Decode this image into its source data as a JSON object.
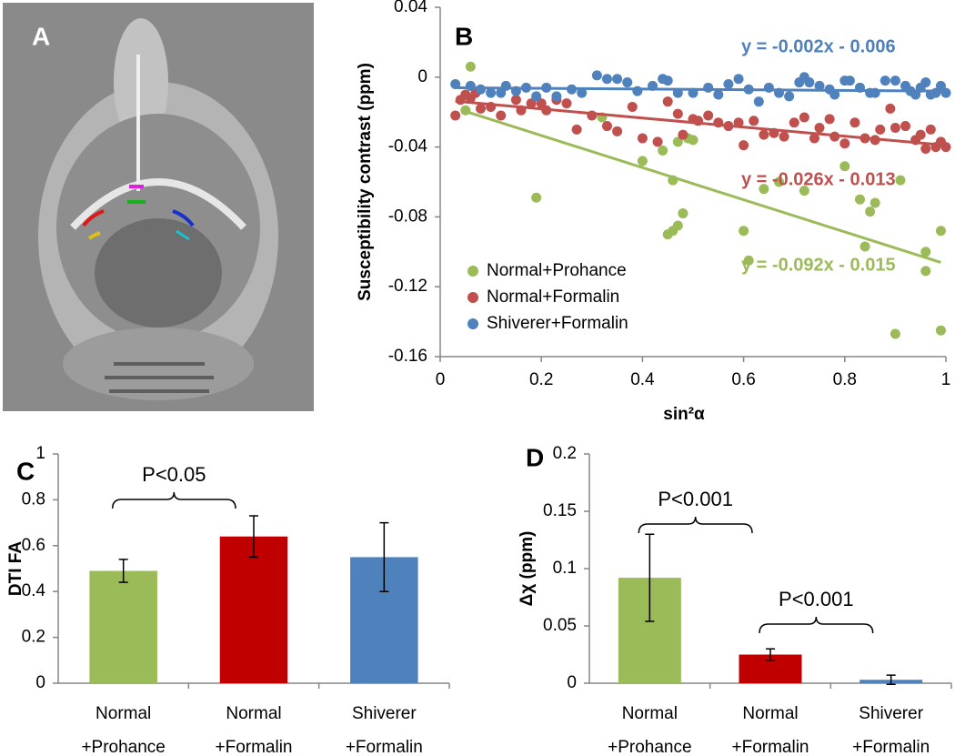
{
  "image_panel": {
    "label": "A"
  },
  "chart_data": [
    {
      "type": "scatter",
      "label": "B",
      "x_label": "sin²α",
      "y_label": "Susceptibility contrast  (ppm)",
      "xlim": [
        0,
        1
      ],
      "xticks": [
        0,
        0.2,
        0.4,
        0.6,
        0.8,
        1
      ],
      "ylim": [
        -0.16,
        0.04
      ],
      "yticks": [
        -0.16,
        -0.12,
        -0.08,
        -0.04,
        0,
        0.04
      ],
      "legend": "lower left",
      "series": [
        {
          "name": "Normal+Prohance",
          "color": "#9bbb59",
          "equation": "y = -0.092x - 0.015",
          "fit": {
            "slope": -0.092,
            "intercept": -0.015
          },
          "x": [
            0.06,
            0.05,
            0.19,
            0.32,
            0.4,
            0.45,
            0.46,
            0.47,
            0.48,
            0.47,
            0.49,
            0.46,
            0.44,
            0.5,
            0.6,
            0.61,
            0.64,
            0.67,
            0.72,
            0.8,
            0.83,
            0.84,
            0.85,
            0.86,
            0.9,
            0.91,
            0.96,
            0.96,
            0.99,
            0.99
          ],
          "values": [
            0.006,
            -0.019,
            -0.069,
            -0.023,
            -0.048,
            -0.09,
            -0.088,
            -0.085,
            -0.078,
            -0.037,
            -0.035,
            -0.059,
            -0.042,
            -0.036,
            -0.088,
            -0.105,
            -0.064,
            -0.06,
            -0.065,
            -0.051,
            -0.07,
            -0.097,
            -0.077,
            -0.072,
            -0.147,
            -0.059,
            -0.1,
            -0.111,
            -0.145,
            -0.088
          ]
        },
        {
          "name": "Normal+Formalin",
          "color": "#c0504d",
          "equation": "y = -0.026x - 0.013",
          "fit": {
            "slope": -0.026,
            "intercept": -0.013
          },
          "x": [
            0.03,
            0.04,
            0.05,
            0.06,
            0.07,
            0.08,
            0.1,
            0.12,
            0.15,
            0.16,
            0.18,
            0.2,
            0.21,
            0.23,
            0.25,
            0.27,
            0.3,
            0.33,
            0.35,
            0.38,
            0.4,
            0.43,
            0.45,
            0.47,
            0.48,
            0.5,
            0.51,
            0.53,
            0.55,
            0.57,
            0.59,
            0.6,
            0.62,
            0.64,
            0.66,
            0.68,
            0.7,
            0.72,
            0.74,
            0.75,
            0.77,
            0.78,
            0.8,
            0.82,
            0.84,
            0.86,
            0.87,
            0.89,
            0.9,
            0.92,
            0.94,
            0.95,
            0.96,
            0.97,
            0.98,
            0.99,
            1.0
          ],
          "values": [
            -0.022,
            -0.013,
            -0.01,
            -0.012,
            -0.009,
            -0.018,
            -0.017,
            -0.022,
            -0.013,
            -0.019,
            -0.015,
            -0.015,
            -0.019,
            -0.013,
            -0.015,
            -0.03,
            -0.022,
            -0.028,
            -0.031,
            -0.017,
            -0.035,
            -0.037,
            -0.014,
            -0.021,
            -0.033,
            -0.024,
            -0.025,
            -0.022,
            -0.026,
            -0.028,
            -0.026,
            -0.039,
            -0.025,
            -0.033,
            -0.032,
            -0.034,
            -0.026,
            -0.023,
            -0.035,
            -0.029,
            -0.024,
            -0.034,
            -0.038,
            -0.026,
            -0.035,
            -0.036,
            -0.03,
            -0.018,
            -0.029,
            -0.028,
            -0.036,
            -0.033,
            -0.041,
            -0.03,
            -0.04,
            -0.037,
            -0.04
          ]
        },
        {
          "name": "Shiverer+Formalin",
          "color": "#4f81bd",
          "equation": "y = -0.002x - 0.006",
          "fit": {
            "slope": -0.002,
            "intercept": -0.006
          },
          "x": [
            0.03,
            0.06,
            0.08,
            0.1,
            0.12,
            0.13,
            0.15,
            0.17,
            0.19,
            0.21,
            0.23,
            0.26,
            0.28,
            0.31,
            0.33,
            0.35,
            0.37,
            0.39,
            0.42,
            0.44,
            0.45,
            0.47,
            0.5,
            0.53,
            0.55,
            0.57,
            0.59,
            0.61,
            0.63,
            0.65,
            0.67,
            0.69,
            0.71,
            0.72,
            0.73,
            0.75,
            0.77,
            0.78,
            0.8,
            0.81,
            0.83,
            0.85,
            0.86,
            0.88,
            0.9,
            0.92,
            0.93,
            0.94,
            0.95,
            0.96,
            0.97,
            0.98,
            0.99,
            1.0
          ],
          "values": [
            -0.004,
            -0.005,
            -0.007,
            -0.009,
            -0.009,
            -0.005,
            -0.008,
            -0.006,
            -0.011,
            -0.006,
            -0.011,
            -0.007,
            -0.009,
            0.001,
            -0.001,
            -0.001,
            -0.003,
            -0.008,
            -0.005,
            -0.001,
            -0.002,
            -0.009,
            -0.009,
            -0.006,
            -0.01,
            -0.004,
            -0.001,
            -0.007,
            -0.014,
            -0.006,
            -0.009,
            -0.011,
            -0.003,
            0.0,
            -0.003,
            -0.005,
            -0.007,
            -0.01,
            -0.002,
            -0.002,
            -0.006,
            -0.009,
            -0.009,
            -0.002,
            -0.002,
            -0.005,
            -0.008,
            -0.01,
            -0.006,
            -0.003,
            -0.01,
            -0.009,
            -0.005,
            -0.009
          ]
        }
      ]
    },
    {
      "type": "bar",
      "label": "C",
      "y_label": "DTI FA",
      "categories": [
        [
          "Normal",
          "+Prohance"
        ],
        [
          "Normal",
          "+Formalin"
        ],
        [
          "Shiverer",
          "+Formalin"
        ]
      ],
      "values": [
        0.49,
        0.64,
        0.55
      ],
      "errors": [
        0.05,
        0.09,
        0.15
      ],
      "colors": [
        "#9bbb59",
        "#c00000",
        "#4f81bd"
      ],
      "ylim": [
        0,
        1
      ],
      "yticks": [
        0,
        0.2,
        0.4,
        0.6,
        0.8,
        1
      ],
      "annotations": [
        "P<0.05"
      ]
    },
    {
      "type": "bar",
      "label": "D",
      "y_label": "Δχ (ppm)",
      "categories": [
        [
          "Normal",
          "+Prohance"
        ],
        [
          "Normal",
          "+Formalin"
        ],
        [
          "Shiverer",
          "+Formalin"
        ]
      ],
      "values": [
        0.092,
        0.025,
        0.003
      ],
      "errors": [
        0.038,
        0.005,
        0.004
      ],
      "colors": [
        "#9bbb59",
        "#c00000",
        "#4f81bd"
      ],
      "ylim": [
        0,
        0.2
      ],
      "yticks": [
        0,
        0.05,
        0.1,
        0.15,
        0.2
      ],
      "annotations": [
        "P<0.001",
        "P<0.001"
      ]
    }
  ]
}
